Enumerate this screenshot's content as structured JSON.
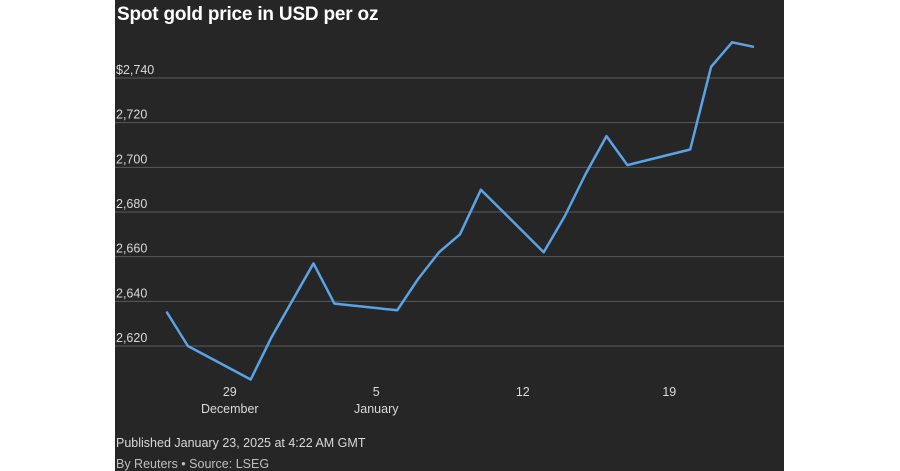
{
  "header": {
    "title": "Spot gold price in USD per oz"
  },
  "footer": {
    "published": "Published January 23, 2025 at 4:22 AM GMT",
    "source": "By Reuters • Source: LSEG"
  },
  "colors": {
    "background": "#262626",
    "line": "#5aa3e6",
    "grid": "#5a5a5a",
    "text": "#d9d9d9"
  },
  "chart_data": {
    "type": "line",
    "title": "Spot gold price in USD per oz",
    "xlabel": "",
    "ylabel": "",
    "x_range": [
      "2024-12-26",
      "2025-01-23"
    ],
    "ylim": [
      2600,
      2760
    ],
    "yticks": [
      2620,
      2640,
      2660,
      2680,
      2700,
      2720,
      2740
    ],
    "ytick_labels": [
      "2,620",
      "2,640",
      "2,660",
      "2,680",
      "2,700",
      "2,720",
      "$2,740"
    ],
    "xticks": [
      {
        "date": "2024-12-29",
        "label": "29",
        "sublabel": "December"
      },
      {
        "date": "2025-01-05",
        "label": "5",
        "sublabel": "January"
      },
      {
        "date": "2025-01-12",
        "label": "12",
        "sublabel": ""
      },
      {
        "date": "2025-01-19",
        "label": "19",
        "sublabel": ""
      }
    ],
    "grid": true,
    "series": [
      {
        "points": [
          {
            "x": "2024-12-26",
            "y": 2635
          },
          {
            "x": "2024-12-27",
            "y": 2620
          },
          {
            "x": "2024-12-30",
            "y": 2605
          },
          {
            "x": "2024-12-31",
            "y": 2624
          },
          {
            "x": "2025-01-02",
            "y": 2657
          },
          {
            "x": "2025-01-03",
            "y": 2639
          },
          {
            "x": "2025-01-06",
            "y": 2636
          },
          {
            "x": "2025-01-07",
            "y": 2650
          },
          {
            "x": "2025-01-08",
            "y": 2662
          },
          {
            "x": "2025-01-09",
            "y": 2670
          },
          {
            "x": "2025-01-10",
            "y": 2690
          },
          {
            "x": "2025-01-13",
            "y": 2662
          },
          {
            "x": "2025-01-14",
            "y": 2678
          },
          {
            "x": "2025-01-15",
            "y": 2697
          },
          {
            "x": "2025-01-16",
            "y": 2714
          },
          {
            "x": "2025-01-17",
            "y": 2701
          },
          {
            "x": "2025-01-20",
            "y": 2708
          },
          {
            "x": "2025-01-21",
            "y": 2745
          },
          {
            "x": "2025-01-22",
            "y": 2756
          },
          {
            "x": "2025-01-23",
            "y": 2754
          }
        ]
      }
    ]
  }
}
